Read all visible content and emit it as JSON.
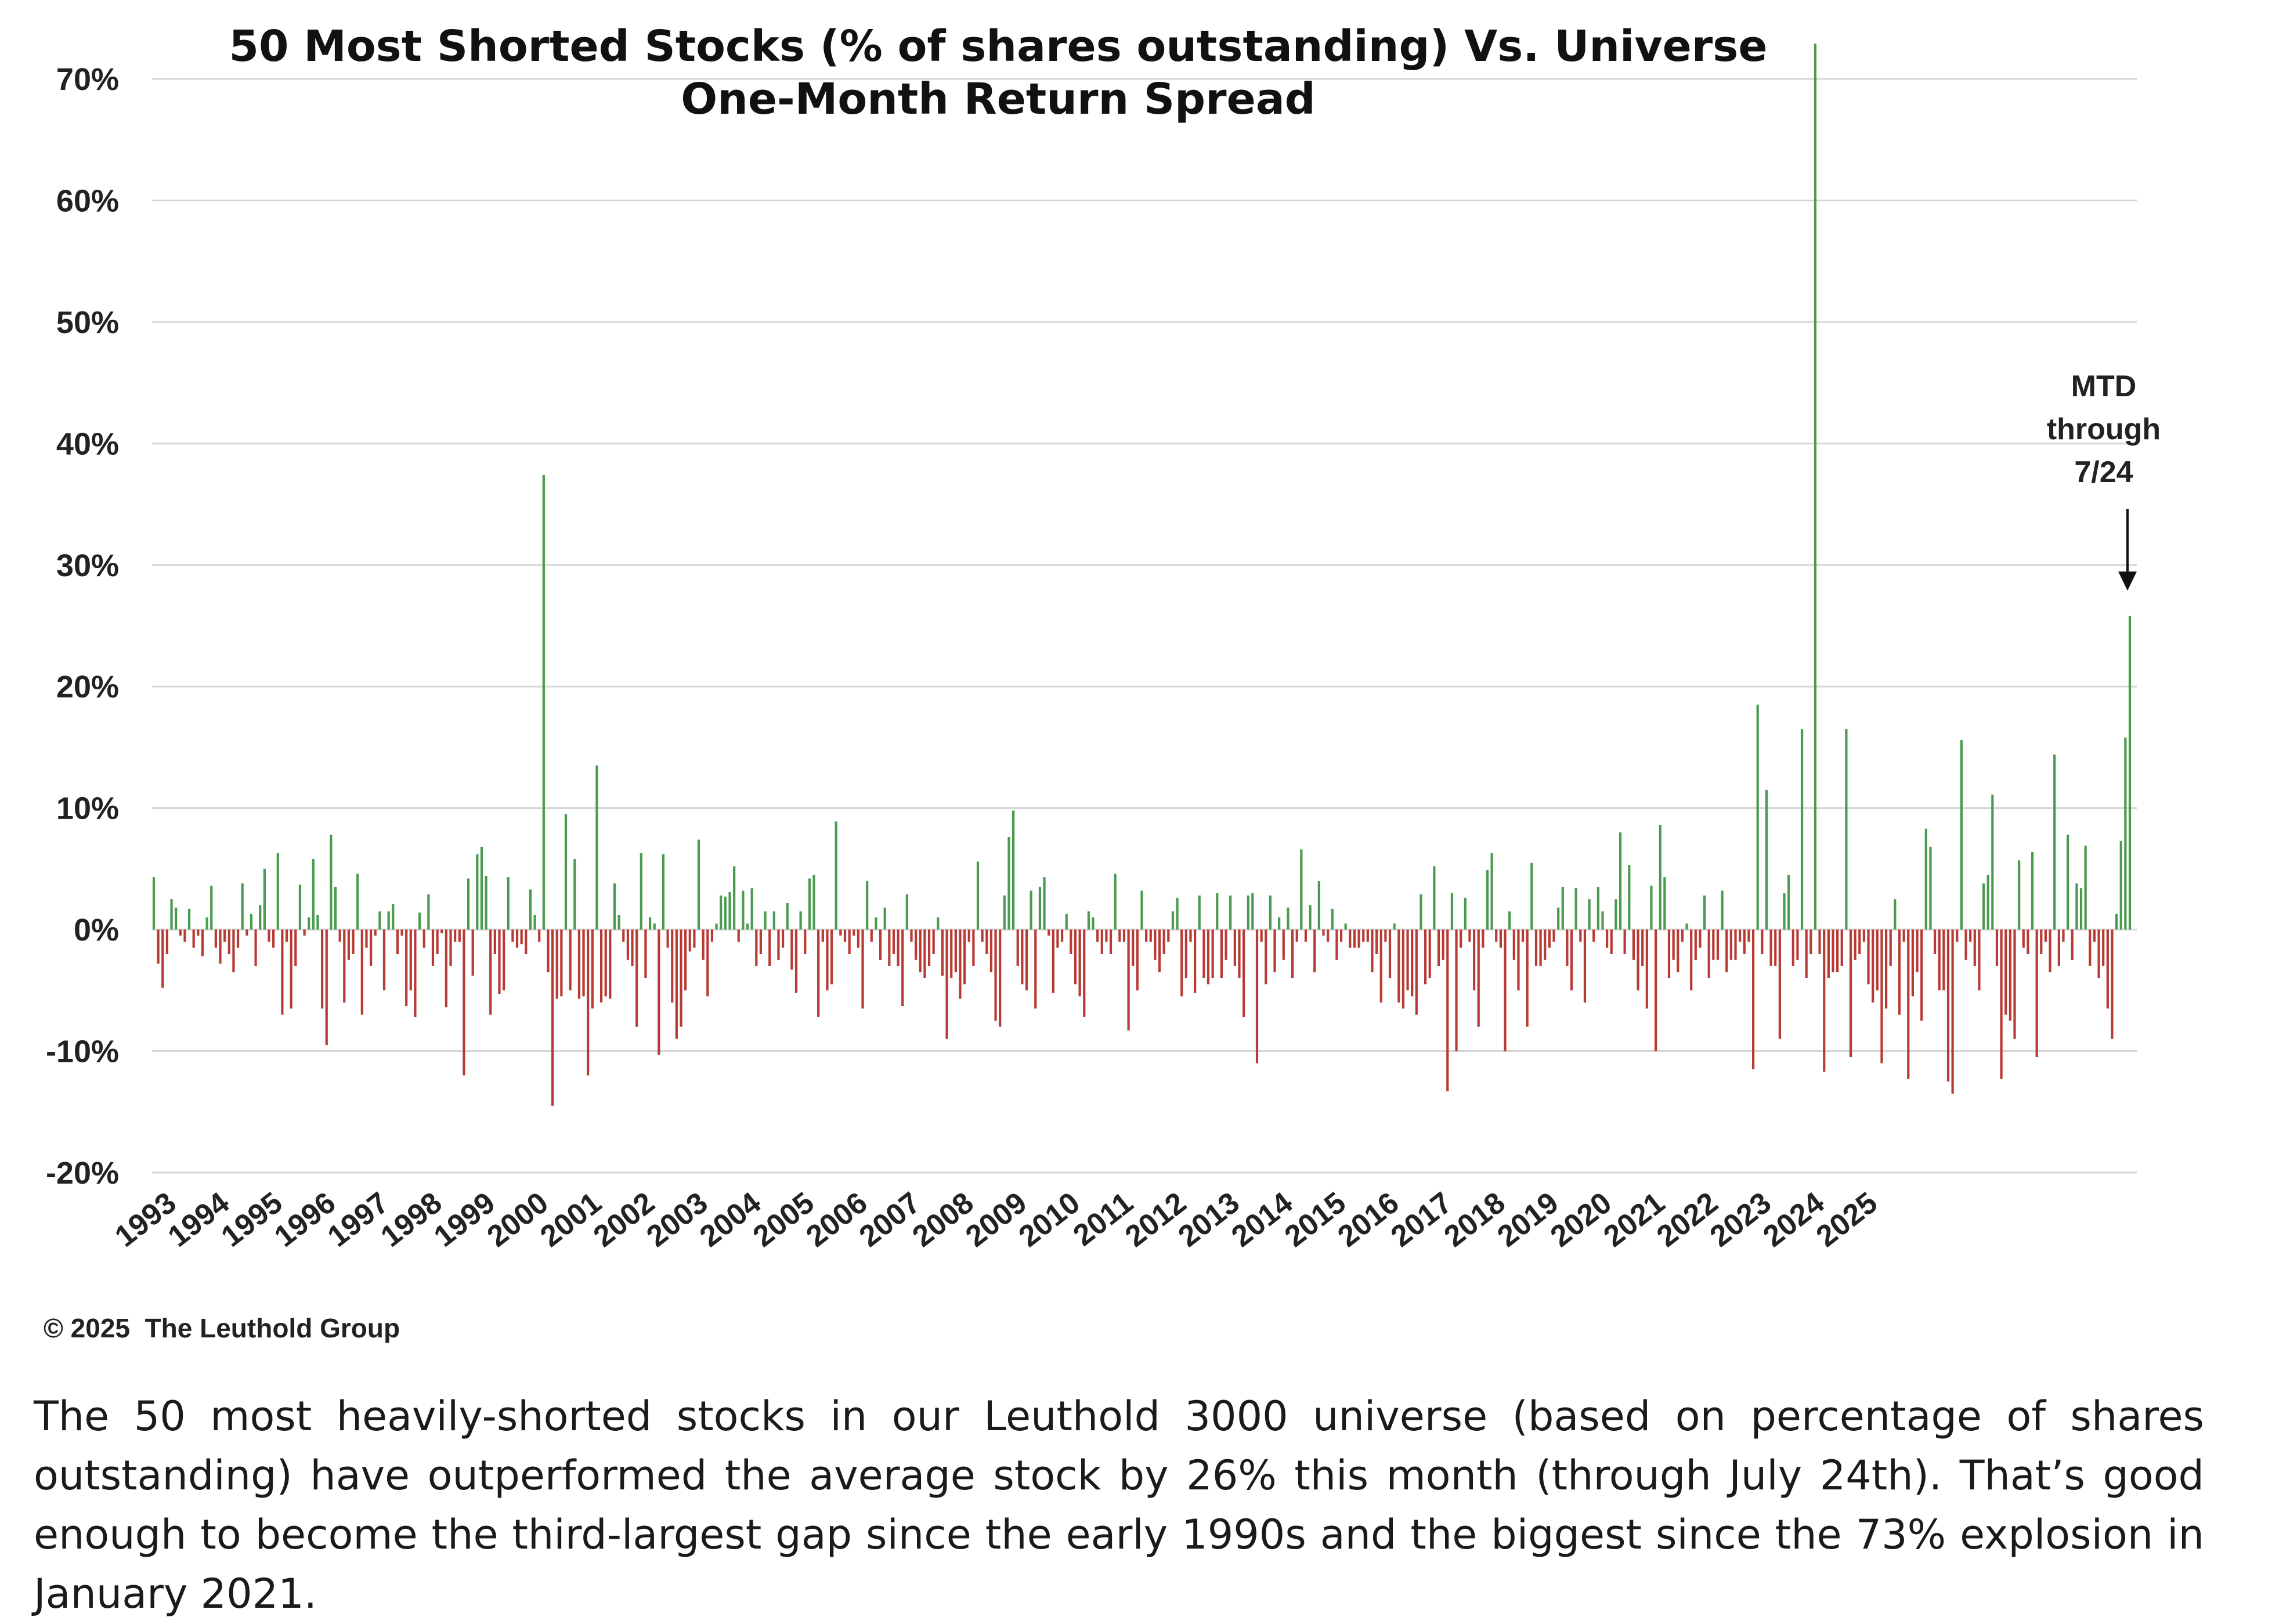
{
  "chart_data": {
    "type": "bar",
    "title": "50 Most Shorted Stocks (% of shares outstanding) Vs. Universe",
    "subtitle": "One-Month Return Spread",
    "xlabel": "",
    "ylabel": "",
    "ylim": [
      -20,
      70
    ],
    "ytick_labels": [
      "70%",
      "60%",
      "50%",
      "40%",
      "30%",
      "20%",
      "10%",
      "0%",
      "-10%",
      "-20%"
    ],
    "x_tick_labels": [
      "1993",
      "1994",
      "1995",
      "1996",
      "1997",
      "1998",
      "1999",
      "2000",
      "2001",
      "2002",
      "2003",
      "2004",
      "2005",
      "2006",
      "2007",
      "2008",
      "2009",
      "2010",
      "2011",
      "2012",
      "2013",
      "2014",
      "2015",
      "2016",
      "2017",
      "2018",
      "2019",
      "2020",
      "2021",
      "2022",
      "2023",
      "2024",
      "2025"
    ],
    "grid": true,
    "legend": "none",
    "positive_color": "#4a9a4f",
    "negative_color": "#b83a35",
    "series": [
      {
        "start": "1993-01",
        "frequency": "monthly",
        "values": [
          4.3,
          -2.8,
          -4.8,
          -2.0,
          2.5,
          1.8,
          -0.5,
          -1.0,
          1.7,
          -1.5,
          -0.5,
          -2.2,
          1.0,
          3.6,
          -1.5,
          -2.8,
          -1.0,
          -2.0,
          -3.5,
          -1.5,
          3.8,
          -0.5,
          1.3,
          -3.0,
          2.0,
          5.0,
          -1.0,
          -1.5,
          6.3,
          -7.0,
          -1.0,
          -6.5,
          -3.0,
          3.7,
          -0.5,
          1.0,
          5.8,
          1.2,
          -6.5,
          -9.5,
          7.8,
          3.5,
          -1.0,
          -6.0,
          -2.5,
          -2.0,
          4.6,
          -7.0,
          -1.5,
          -3.0,
          -0.5,
          1.5,
          -5.0,
          1.5,
          2.1,
          -2.0,
          -0.5,
          -6.3,
          -5.0,
          -7.2,
          1.4,
          -1.5,
          2.9,
          -3.0,
          -2.0,
          -0.3,
          -6.4,
          -3.0,
          -1.0,
          -1.0,
          -12.0,
          4.2,
          -3.8,
          6.2,
          6.8,
          4.4,
          -7.0,
          -2.0,
          -5.3,
          -5.0,
          4.3,
          -1.0,
          -1.5,
          -1.2,
          -2.0,
          3.3,
          1.2,
          -1.0,
          37.4,
          -3.5,
          -14.5,
          -5.7,
          -5.5,
          9.5,
          -5.0,
          5.8,
          -5.7,
          -5.5,
          -12.0,
          -6.5,
          13.5,
          -6.0,
          -5.5,
          -5.7,
          3.8,
          1.2,
          -1.0,
          -2.5,
          -3.0,
          -8.0,
          6.3,
          -4.0,
          1.0,
          0.5,
          -10.3,
          6.2,
          -1.5,
          -6.0,
          -9.0,
          -8.0,
          -5.0,
          -1.8,
          -1.5,
          7.4,
          -2.5,
          -5.5,
          -1.0,
          0.5,
          2.8,
          2.7,
          3.1,
          5.2,
          -1.0,
          3.2,
          0.5,
          3.4,
          -3.0,
          -2.0,
          1.5,
          -3.0,
          1.5,
          -2.5,
          -1.5,
          2.2,
          -3.3,
          -5.2,
          1.5,
          -2.0,
          4.2,
          4.5,
          -7.2,
          -1.0,
          -5.0,
          -4.5,
          8.9,
          -0.5,
          -1.0,
          -2.0,
          -0.5,
          -1.5,
          -6.5,
          4.0,
          -1.0,
          1.0,
          -2.5,
          1.8,
          -3.0,
          -2.0,
          -3.0,
          -6.3,
          2.9,
          -1.0,
          -2.5,
          -3.5,
          -4.0,
          -3.0,
          -2.0,
          1.0,
          -3.8,
          -9.0,
          -4.0,
          -3.5,
          -5.7,
          -4.5,
          -1.0,
          -3.0,
          5.6,
          -1.0,
          -2.0,
          -3.5,
          -7.5,
          -8.0,
          2.8,
          7.6,
          9.8,
          -3.0,
          -4.5,
          -5.0,
          3.2,
          -6.5,
          3.5,
          4.3,
          -0.5,
          -5.2,
          -1.5,
          -1.0,
          1.3,
          -2.0,
          -4.5,
          -5.5,
          -7.2,
          1.5,
          1.0,
          -1.0,
          -2.0,
          -1.0,
          -2.0,
          4.6,
          -1.0,
          -1.0,
          -8.3,
          -3.0,
          -5.0,
          3.2,
          -1.0,
          -1.0,
          -2.5,
          -3.5,
          -2.0,
          -1.0,
          1.5,
          2.6,
          -5.5,
          -4.0,
          -1.0,
          -5.2,
          2.8,
          -4.0,
          -4.5,
          -4.0,
          3.0,
          -4.0,
          -2.5,
          2.8,
          -3.0,
          -4.0,
          -7.2,
          2.8,
          3.0,
          -11.0,
          -1.0,
          -4.5,
          2.8,
          -3.5,
          1.0,
          -2.5,
          1.8,
          -4.0,
          -1.0,
          6.6,
          -1.0,
          2.0,
          -3.5,
          4.0,
          -0.5,
          -1.0,
          1.7,
          -2.5,
          -1.0,
          0.5,
          -1.5,
          -1.5,
          -1.5,
          -1.0,
          -1.0,
          -3.5,
          -2.0,
          -6.0,
          -1.0,
          -4.0,
          0.5,
          -6.0,
          -6.5,
          -5.0,
          -5.5,
          -7.0,
          2.9,
          -4.5,
          -4.0,
          5.2,
          -3.0,
          -2.5,
          -13.3,
          3.0,
          -10.0,
          -1.5,
          2.6,
          -1.0,
          -5.0,
          -8.0,
          -1.5,
          4.9,
          6.3,
          -1.0,
          -1.5,
          -10.0,
          1.5,
          -2.5,
          -5.0,
          -1.0,
          -8.0,
          5.5,
          -3.0,
          -3.0,
          -2.5,
          -1.5,
          -1.0,
          1.8,
          3.5,
          -3.0,
          -5.0,
          3.4,
          -1.0,
          -6.0,
          2.5,
          -1.0,
          3.5,
          1.5,
          -1.5,
          -2.0,
          2.5,
          8.0,
          -2.0,
          5.3,
          -2.5,
          -5.0,
          -3.0,
          -6.5,
          3.6,
          -10.0,
          8.6,
          4.3,
          -4.0,
          -2.5,
          -3.5,
          -1.0,
          0.5,
          -5.0,
          -2.5,
          -1.5,
          2.8,
          -4.0,
          -2.5,
          -2.5,
          3.2,
          -3.5,
          -2.5,
          -2.5,
          -1.0,
          -2.0,
          -1.0,
          -11.5,
          18.5,
          -2.0,
          11.5,
          -3.0,
          -3.0,
          -9.0,
          3.0,
          4.5,
          -3.0,
          -2.5,
          16.5,
          -4.0,
          -2.0,
          72.9,
          -2.0,
          -11.7,
          -4.0,
          -3.5,
          -3.5,
          -3.0,
          16.5,
          -10.5,
          -2.5,
          -2.0,
          -1.0,
          -4.5,
          -6.0,
          -5.0,
          -11.0,
          -6.5,
          -3.0,
          2.5,
          -7.0,
          -1.0,
          -12.3,
          -5.5,
          -3.5,
          -7.5,
          8.3,
          6.8,
          -2.0,
          -5.0,
          -5.0,
          -12.5,
          -13.5,
          -1.0,
          15.6,
          -2.5,
          -1.0,
          -3.0,
          -5.0,
          3.8,
          4.5,
          11.1,
          -3.0,
          -12.3,
          -7.0,
          -7.5,
          -9.0,
          5.7,
          -1.5,
          -2.0,
          6.4,
          -10.5,
          -2.0,
          -1.0,
          -3.5,
          14.4,
          -3.0,
          -1.0,
          7.8,
          -2.5,
          3.8,
          3.4,
          6.9,
          -3.0,
          -1.0,
          -4.0,
          -3.0,
          -6.5,
          -9.0,
          1.3,
          7.3,
          15.8,
          25.8
        ]
      }
    ],
    "annotation": [
      "MTD",
      "through",
      "7/24"
    ]
  },
  "copyright": "© 2025  The Leuthold Group",
  "caption": "The 50 most heavily-shorted stocks in our Leuthold 3000 universe (based on percentage of shares outstanding) have outperformed the average stock by 26% this month (through July 24th). That’s good enough to become the third-largest gap since the early 1990s and the biggest since the 73% explosion in January 2021."
}
